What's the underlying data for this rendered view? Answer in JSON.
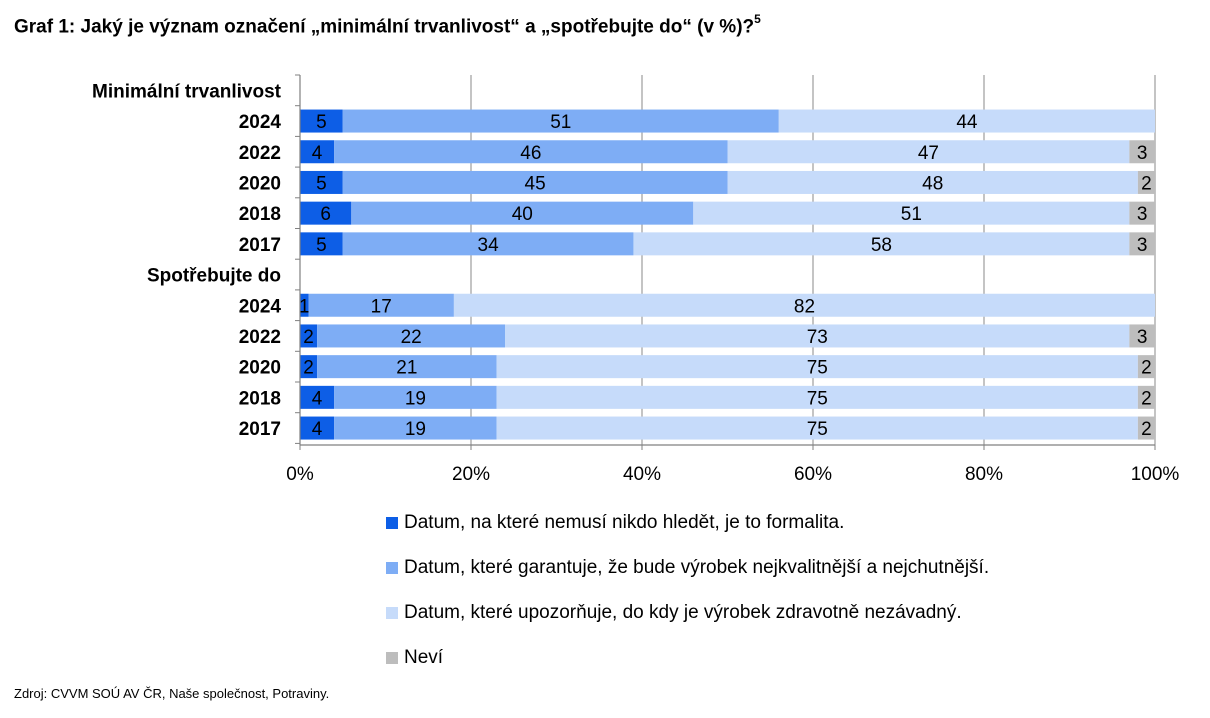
{
  "title": "Graf 1: Jaký je význam označení „minimální trvanlivost“ a „spotřebujte do“ (v %)?",
  "title_footnote": "5",
  "source": "Zdroj: CVVM SOÚ AV ČR, Naše společnost, Potraviny.",
  "chart_data": {
    "type": "bar",
    "orientation": "horizontal",
    "stacked": true,
    "percent_stacked": true,
    "groups": [
      {
        "label": "Minimální trvanlivost",
        "rows": [
          {
            "label": "2024",
            "values": [
              5,
              51,
              44,
              0
            ]
          },
          {
            "label": "2022",
            "values": [
              4,
              46,
              47,
              3
            ]
          },
          {
            "label": "2020",
            "values": [
              5,
              45,
              48,
              2
            ]
          },
          {
            "label": "2018",
            "values": [
              6,
              40,
              51,
              3
            ]
          },
          {
            "label": "2017",
            "values": [
              5,
              34,
              58,
              3
            ]
          }
        ]
      },
      {
        "label": "Spotřebujte do",
        "rows": [
          {
            "label": "2024",
            "values": [
              1,
              17,
              82,
              0
            ]
          },
          {
            "label": "2022",
            "values": [
              2,
              22,
              73,
              3
            ]
          },
          {
            "label": "2020",
            "values": [
              2,
              21,
              75,
              2
            ]
          },
          {
            "label": "2018",
            "values": [
              4,
              19,
              75,
              2
            ]
          },
          {
            "label": "2017",
            "values": [
              4,
              19,
              75,
              2
            ]
          }
        ]
      }
    ],
    "series": [
      {
        "name": "Datum, na které nemusí nikdo hledět, je to formalita.",
        "color": "#0d5ee6"
      },
      {
        "name": "Datum, které garantuje, že bude výrobek nejkvalitnější a nejchutnější.",
        "color": "#7eadf5"
      },
      {
        "name": "Datum, které upozorňuje, do kdy je výrobek zdravotně nezávadný.",
        "color": "#c6dbfa"
      },
      {
        "name": "Neví",
        "color": "#bdbdbd"
      }
    ],
    "xlim": [
      0,
      100
    ],
    "x_ticks": [
      "0%",
      "20%",
      "40%",
      "60%",
      "80%",
      "100%"
    ],
    "grid": true,
    "legend_position": "bottom"
  }
}
